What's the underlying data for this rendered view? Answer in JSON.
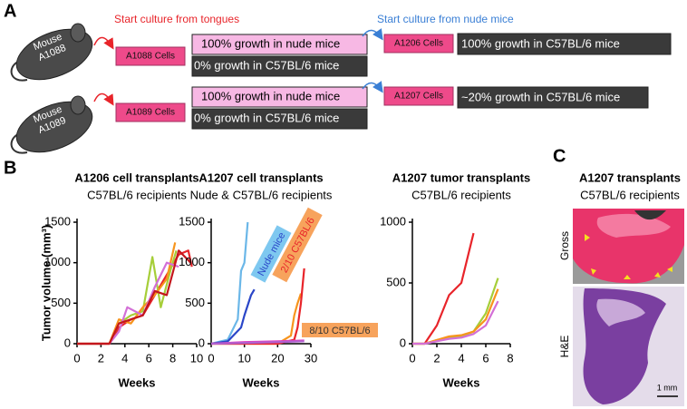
{
  "panel_labels": [
    "A",
    "B",
    "C"
  ],
  "panel_a": {
    "arrow_labels": [
      "Start culture from tongues",
      "Start culture from nude mice"
    ],
    "rows": [
      {
        "mouse": [
          "Mouse",
          "A1088"
        ],
        "cells": "A1088 Cells",
        "nude": "100% growth in nude mice",
        "c57": "0% growth in C57BL/6 mice",
        "derived": "A1206 Cells",
        "derived_growth": "100% growth in C57BL/6 mice"
      },
      {
        "mouse": [
          "Mouse",
          "A1089"
        ],
        "cells": "A1089 Cells",
        "nude": "100% growth in nude mice",
        "c57": "0% growth in C57BL/6 mice",
        "derived": "A1207 Cells",
        "derived_growth": "~20% growth in C57BL/6 mice"
      }
    ]
  },
  "chart_data": [
    {
      "type": "line",
      "title": "A1206 cell transplants",
      "subtitle": "C57BL/6 recipients",
      "y_label": "Tumor volume (mm³)",
      "x_label": "Weeks",
      "xlim": [
        0,
        10
      ],
      "xticks": [
        0,
        2,
        4,
        6,
        8,
        10
      ],
      "ylim": [
        0,
        1500
      ],
      "yticks": [
        0,
        500,
        1000,
        1500
      ],
      "series": [
        {
          "color": "#e8242a",
          "x": [
            0,
            2.7,
            3.5,
            4.5,
            5.5,
            6.5,
            7.5,
            8.5,
            9.3,
            9.6
          ],
          "values": [
            0,
            0,
            200,
            300,
            350,
            600,
            850,
            1100,
            1150,
            950
          ]
        },
        {
          "color": "#a6ce39",
          "x": [
            0,
            2.7,
            3.5,
            4.5,
            5.5,
            6.3,
            7,
            7.8,
            8.3
          ],
          "values": [
            0,
            0,
            250,
            350,
            400,
            1070,
            450,
            900,
            1150
          ]
        },
        {
          "color": "#f7941d",
          "x": [
            0,
            2.7,
            3.5,
            4.5,
            5.5,
            6.5,
            7.5,
            8.2
          ],
          "values": [
            0,
            0,
            300,
            250,
            450,
            600,
            800,
            1250
          ]
        },
        {
          "color": "#d36fd6",
          "x": [
            0,
            2.7,
            3.5,
            4.2,
            5.5,
            6.5,
            7.5,
            8.5
          ],
          "values": [
            0,
            0,
            150,
            450,
            350,
            700,
            1000,
            950
          ]
        },
        {
          "color": "#c4161c",
          "x": [
            0,
            2.7,
            3.5,
            4.5,
            5.5,
            6.5,
            7.5,
            8.5,
            9.5
          ],
          "values": [
            0,
            0,
            250,
            300,
            350,
            650,
            600,
            1150,
            1000
          ]
        }
      ]
    },
    {
      "type": "line",
      "title": "A1207 cell transplants",
      "subtitle": "Nude & C57BL/6 recipients",
      "x_label": "Weeks",
      "xlim": [
        0,
        30
      ],
      "xticks": [
        0,
        10,
        20,
        30
      ],
      "ylim": [
        0,
        1500
      ],
      "yticks": [
        0,
        500,
        1000,
        1500
      ],
      "annotations": [
        "Nude mice",
        "2/10 C57BL/6",
        "8/10 C57BL/6"
      ],
      "series": [
        {
          "color": "#6bb7e8",
          "x": [
            0,
            5,
            8,
            9,
            10,
            11
          ],
          "values": [
            0,
            50,
            300,
            900,
            1000,
            1500
          ]
        },
        {
          "color": "#2a46c8",
          "x": [
            0,
            5,
            9,
            10,
            12,
            13
          ],
          "values": [
            0,
            30,
            200,
            350,
            600,
            670
          ]
        },
        {
          "color": "#f7941d",
          "x": [
            0,
            20,
            24,
            25,
            26,
            27
          ],
          "values": [
            0,
            0,
            100,
            350,
            500,
            620
          ]
        },
        {
          "color": "#e8242a",
          "x": [
            0,
            20,
            25,
            26,
            27,
            28
          ],
          "values": [
            0,
            0,
            50,
            200,
            500,
            930
          ]
        },
        {
          "color": "#e040c0",
          "x": [
            0,
            10,
            20,
            28
          ],
          "values": [
            0,
            20,
            30,
            40
          ]
        },
        {
          "color": "#b060d0",
          "x": [
            0,
            10,
            20,
            28
          ],
          "values": [
            0,
            10,
            20,
            30
          ]
        }
      ]
    },
    {
      "type": "line",
      "title": "A1207 tumor transplants",
      "subtitle": "C57BL/6 recipients",
      "x_label": "Weeks",
      "xlim": [
        0,
        8
      ],
      "xticks": [
        0,
        2,
        4,
        6,
        8
      ],
      "ylim": [
        0,
        1000
      ],
      "yticks": [
        0,
        500,
        1000
      ],
      "series": [
        {
          "color": "#e8242a",
          "x": [
            0,
            1,
            2,
            3,
            4,
            5
          ],
          "values": [
            0,
            0,
            150,
            400,
            500,
            910
          ]
        },
        {
          "color": "#a6ce39",
          "x": [
            0,
            1,
            2,
            3,
            4,
            5,
            6,
            7
          ],
          "values": [
            0,
            0,
            30,
            50,
            60,
            100,
            250,
            540
          ]
        },
        {
          "color": "#f7941d",
          "x": [
            0,
            1,
            2,
            3,
            4,
            5,
            6,
            7
          ],
          "values": [
            0,
            0,
            30,
            60,
            70,
            100,
            200,
            450
          ]
        },
        {
          "color": "#d36fd6",
          "x": [
            0,
            1,
            2,
            3,
            4,
            5,
            6,
            7
          ],
          "values": [
            0,
            0,
            20,
            40,
            50,
            80,
            150,
            350
          ]
        }
      ]
    }
  ],
  "panel_c": {
    "title": "A1207 transplants",
    "subtitle": "C57BL/6 recipients",
    "images": [
      "Gross",
      "H&E"
    ],
    "scale_bar": "1 mm"
  }
}
